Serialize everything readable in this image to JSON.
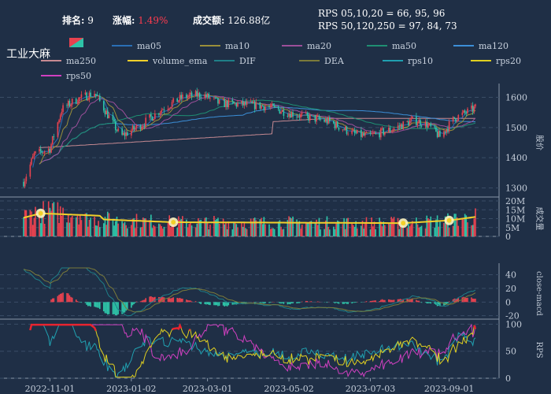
{
  "header": {
    "rank_label": "排名:",
    "rank_value": "9",
    "change_label": "涨幅:",
    "change_value": "1.49%",
    "turnover_label": "成交额:",
    "turnover_value": "126.88亿",
    "rps_short": "RPS 05,10,20 = 66, 95, 96",
    "rps_long": "RPS 50,120,250 = 97, 84, 73"
  },
  "title": "工业大麻",
  "legend": [
    {
      "name": "ma05",
      "color": "#2a6fb5"
    },
    {
      "name": "ma10",
      "color": "#9a8f3a"
    },
    {
      "name": "ma20",
      "color": "#9c4f9a"
    },
    {
      "name": "ma50",
      "color": "#1f8f72"
    },
    {
      "name": "ma120",
      "color": "#3c8fd8"
    },
    {
      "name": "ma250",
      "color": "#c78a92"
    },
    {
      "name": "volume_ema",
      "color": "#f2d02a"
    },
    {
      "name": "DIF",
      "color": "#1f7f88"
    },
    {
      "name": "DEA",
      "color": "#7a7a3a"
    },
    {
      "name": "rps10",
      "color": "#20a0b0"
    },
    {
      "name": "rps20",
      "color": "#e0d020"
    },
    {
      "name": "rps50",
      "color": "#d040c0"
    }
  ],
  "colors": {
    "up": "#e8424f",
    "down": "#2ec4a8",
    "grid": "#3a4d66",
    "axis": "#8a97a8",
    "volume_ema": "#f2d02a"
  },
  "chart_data": {
    "type": "candlestick",
    "x_tick_labels": [
      "2022-11-01",
      "2023-01-02",
      "2023-03-01",
      "2023-05-02",
      "2023-07-03",
      "2023-09-01"
    ],
    "x_range": [
      "2022-10-12",
      "2023-09-21"
    ],
    "panels": [
      {
        "name": "price",
        "ylabel": "股价",
        "ylim": [
          1270,
          1630
        ],
        "ticks": [
          1300,
          1400,
          1500,
          1600
        ],
        "trend_points": [
          [
            "2022-10-12",
            1320
          ],
          [
            "2022-10-20",
            1410
          ],
          [
            "2022-11-01",
            1430
          ],
          [
            "2022-11-10",
            1560
          ],
          [
            "2022-11-20",
            1590
          ],
          [
            "2022-12-05",
            1615
          ],
          [
            "2022-12-25",
            1470
          ],
          [
            "2023-01-10",
            1510
          ],
          [
            "2023-01-25",
            1560
          ],
          [
            "2023-02-10",
            1600
          ],
          [
            "2023-02-25",
            1610
          ],
          [
            "2023-03-10",
            1580
          ],
          [
            "2023-04-01",
            1575
          ],
          [
            "2023-04-15",
            1570
          ],
          [
            "2023-05-01",
            1550
          ],
          [
            "2023-05-15",
            1535
          ],
          [
            "2023-06-01",
            1520
          ],
          [
            "2023-06-20",
            1480
          ],
          [
            "2023-07-01",
            1470
          ],
          [
            "2023-07-20",
            1495
          ],
          [
            "2023-08-05",
            1525
          ],
          [
            "2023-08-15",
            1510
          ],
          [
            "2023-08-25",
            1470
          ],
          [
            "2023-09-05",
            1530
          ],
          [
            "2023-09-21",
            1565
          ]
        ]
      },
      {
        "name": "volume",
        "ylabel": "成交量",
        "ylim": [
          0,
          20
        ],
        "ticks": [
          0,
          5,
          10,
          15,
          20
        ],
        "tick_labels": [
          "0",
          "5M",
          "10M",
          "15M",
          "20M"
        ],
        "highlight_points": [
          [
            "2022-10-25",
            11
          ],
          [
            "2023-02-03",
            8
          ],
          [
            "2023-07-28",
            7.5
          ],
          [
            "2023-09-01",
            9
          ]
        ]
      },
      {
        "name": "macd",
        "ylabel": "close-macd",
        "ylim": [
          -25,
          50
        ],
        "ticks": [
          -20,
          0,
          20,
          40
        ]
      },
      {
        "name": "rps",
        "ylabel": "RPS",
        "ylim": [
          0,
          105
        ],
        "ticks": [
          0,
          50,
          100
        ]
      }
    ]
  }
}
